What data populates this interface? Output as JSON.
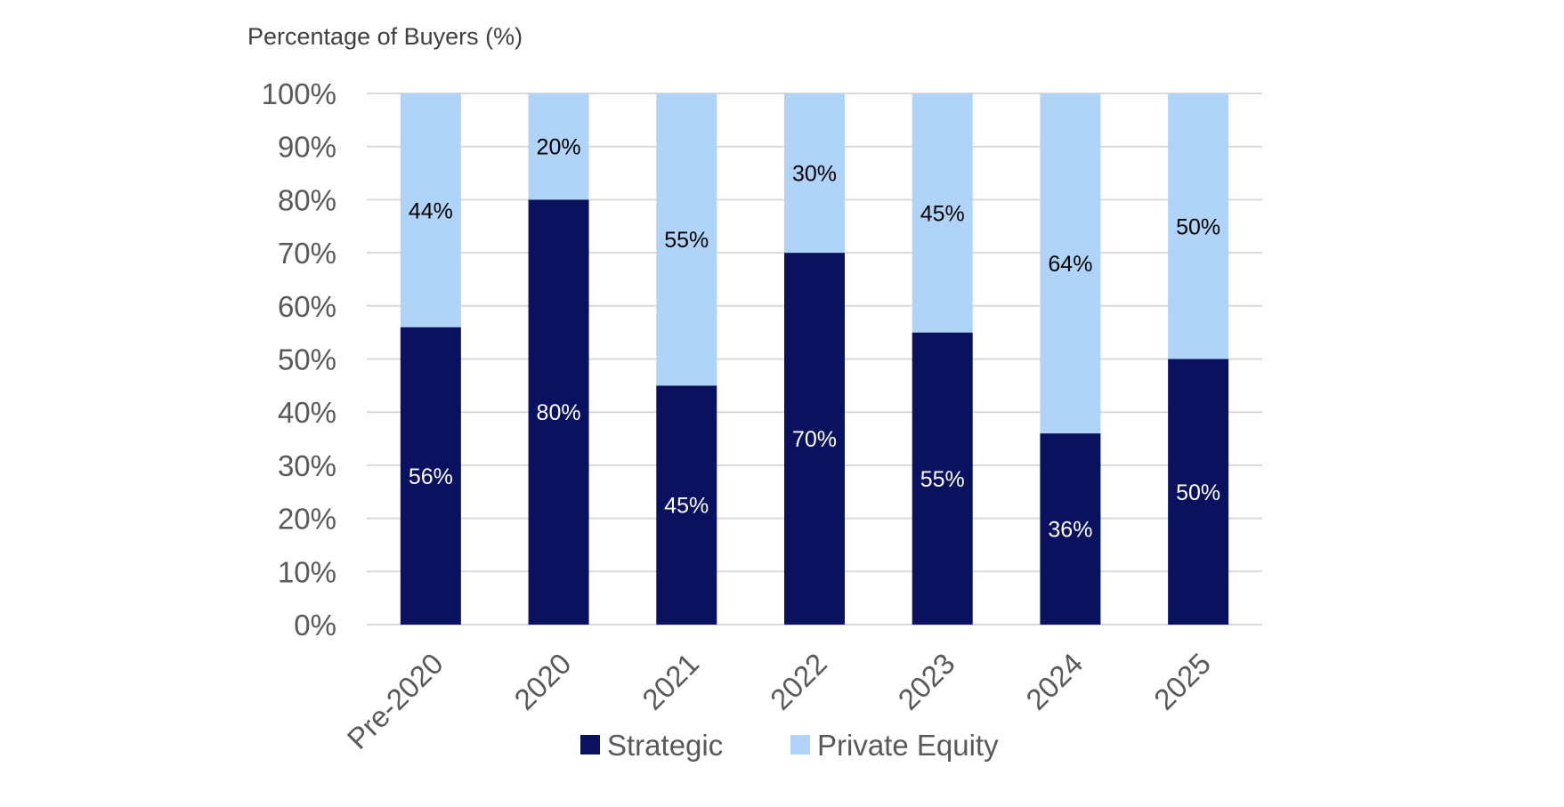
{
  "chart_data": {
    "type": "bar",
    "stacked": true,
    "ylabel": "Percentage of Buyers (%)",
    "ylim": [
      0,
      100
    ],
    "y_ticks": [
      "0%",
      "10%",
      "20%",
      "30%",
      "40%",
      "50%",
      "60%",
      "70%",
      "80%",
      "90%",
      "100%"
    ],
    "grid": true,
    "categories": [
      "Pre-2020",
      "2020",
      "2021",
      "2022",
      "2023",
      "2024",
      "2025"
    ],
    "series": [
      {
        "name": "Strategic",
        "color": "#0a1260",
        "label_color": "#ffffff",
        "values": [
          56,
          80,
          45,
          70,
          55,
          36,
          50
        ],
        "labels": [
          "56%",
          "80%",
          "45%",
          "70%",
          "55%",
          "36%",
          "50%"
        ]
      },
      {
        "name": "Private Equity",
        "color": "#b0d4f8",
        "label_color": "#000000",
        "values": [
          44,
          20,
          55,
          30,
          45,
          64,
          50
        ],
        "labels": [
          "44%",
          "20%",
          "55%",
          "30%",
          "45%",
          "64%",
          "50%"
        ]
      }
    ],
    "legend_position": "bottom"
  }
}
